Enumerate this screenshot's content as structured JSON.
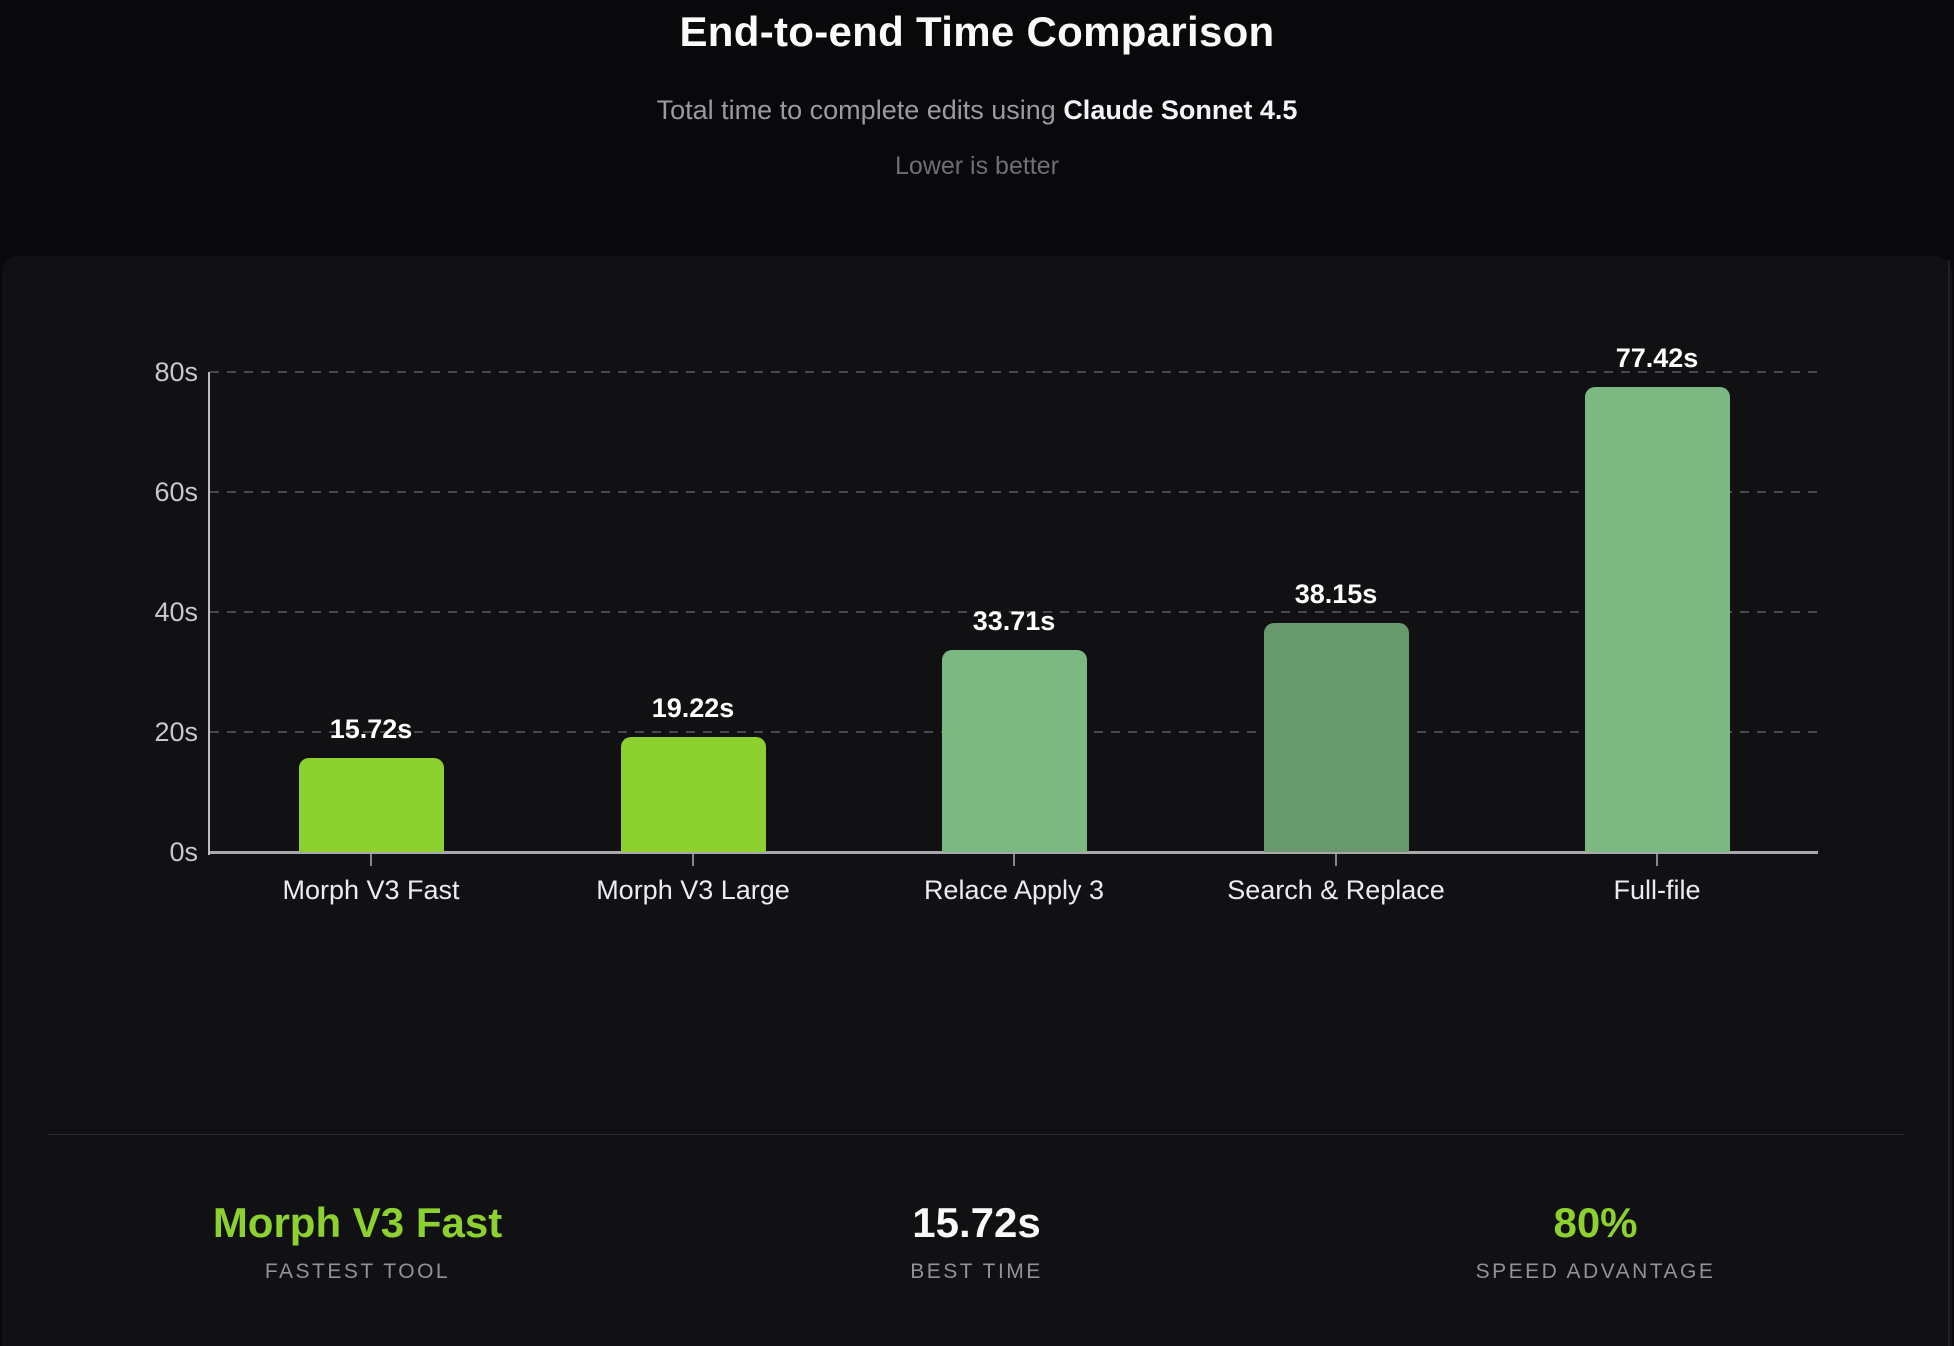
{
  "header": {
    "title": "End-to-end Time Comparison",
    "subtitle_prefix": "Total time to complete edits using ",
    "subtitle_model": "Claude Sonnet 4.5",
    "note": "Lower is better"
  },
  "chart_data": {
    "type": "bar",
    "title": "End-to-end Time Comparison",
    "subtitle": "Total time to complete edits using Claude Sonnet 4.5",
    "annotation": "Lower is better",
    "categories": [
      "Morph V3 Fast",
      "Morph V3 Large",
      "Relace Apply 3",
      "Search & Replace",
      "Full-file"
    ],
    "values": [
      15.72,
      19.22,
      33.71,
      38.15,
      77.42
    ],
    "value_labels": [
      "15.72s",
      "19.22s",
      "33.71s",
      "38.15s",
      "77.42s"
    ],
    "bar_colors": [
      "#8dd130",
      "#8dd130",
      "#7cb982",
      "#699a6e",
      "#7cb982"
    ],
    "unit": "s",
    "xlabel": "",
    "ylabel": "",
    "ylim": [
      0,
      80
    ],
    "yticks": [
      {
        "value": 0,
        "label": "0s"
      },
      {
        "value": 20,
        "label": "20s"
      },
      {
        "value": 40,
        "label": "40s"
      },
      {
        "value": 60,
        "label": "60s"
      },
      {
        "value": 80,
        "label": "80s"
      }
    ],
    "grid": "horizontal-dashed",
    "legend_position": "none"
  },
  "stats": [
    {
      "value": "Morph V3 Fast",
      "label": "FASTEST TOOL",
      "highlight": true
    },
    {
      "value": "15.72s",
      "label": "BEST TIME",
      "highlight": false
    },
    {
      "value": "80%",
      "label": "SPEED ADVANTAGE",
      "highlight": true
    }
  ],
  "colors": {
    "accent_lime": "#8dd130",
    "sage": "#7cb982",
    "sage_dark": "#699a6e",
    "page_background": "#09090b",
    "panel_background": "#111114"
  }
}
